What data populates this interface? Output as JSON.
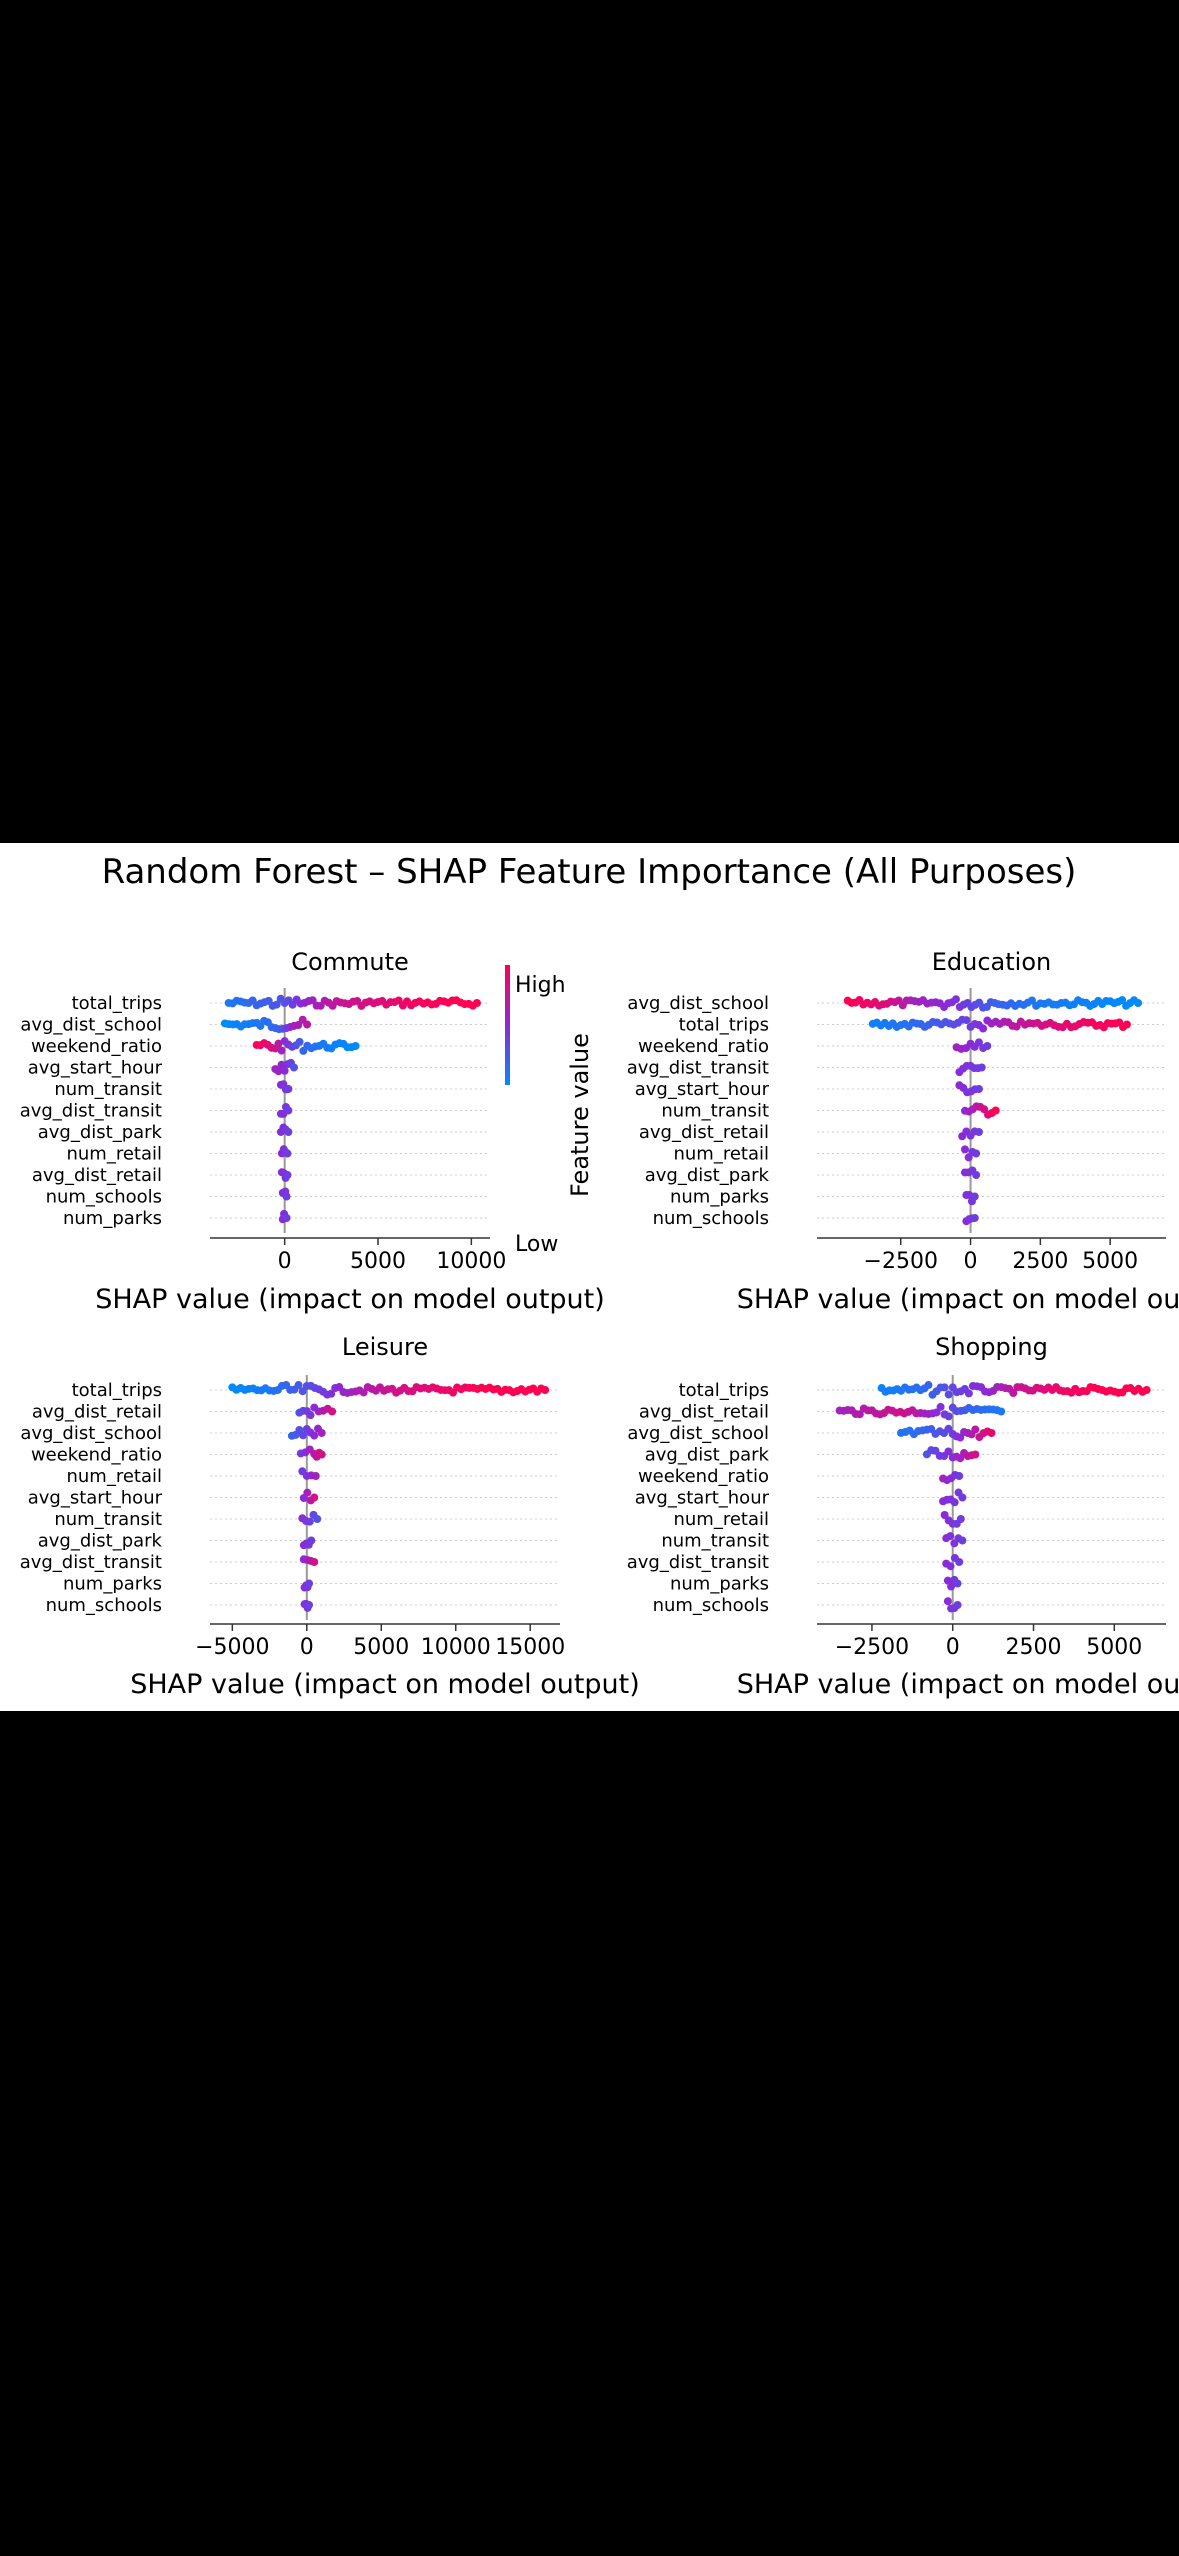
{
  "title": "Random Forest – SHAP Feature Importance (All Purposes)",
  "colorbar": {
    "label": "Feature value",
    "high": "High",
    "low": "Low",
    "color_high": "#ff0052",
    "color_low": "#008bfb"
  },
  "chart_data": [
    {
      "type": "scatter",
      "title": "Commute",
      "xlabel": "SHAP value (impact on model output)",
      "xlim": [
        -4000,
        11000
      ],
      "xticks": [
        0,
        5000,
        10000
      ],
      "xtick_labels": [
        "0",
        "5000",
        "10000"
      ],
      "features": [
        "total_trips",
        "avg_dist_school",
        "weekend_ratio",
        "avg_start_hour",
        "num_transit",
        "avg_dist_transit",
        "avg_dist_park",
        "num_retail",
        "avg_dist_retail",
        "num_schools",
        "num_parks"
      ],
      "spread": [
        [
          {
            "x": -3000,
            "v": 0.1
          },
          {
            "x": -1500,
            "v": 0.2
          },
          {
            "x": 0,
            "v": 0.3
          },
          {
            "x": 1500,
            "v": 0.6
          },
          {
            "x": 3000,
            "v": 0.75
          },
          {
            "x": 5000,
            "v": 0.85
          },
          {
            "x": 7000,
            "v": 0.95
          },
          {
            "x": 9200,
            "v": 1.0
          },
          {
            "x": 10300,
            "v": 1.0
          }
        ],
        [
          {
            "x": -3200,
            "v": 0.0
          },
          {
            "x": -1500,
            "v": 0.1
          },
          {
            "x": -300,
            "v": 0.2
          },
          {
            "x": 500,
            "v": 0.6
          },
          {
            "x": 1200,
            "v": 0.7
          }
        ],
        [
          {
            "x": -1500,
            "v": 1.0
          },
          {
            "x": -500,
            "v": 0.8
          },
          {
            "x": 0,
            "v": 0.5
          },
          {
            "x": 1000,
            "v": 0.2
          },
          {
            "x": 2500,
            "v": 0.05
          },
          {
            "x": 3800,
            "v": 0.0
          }
        ],
        [
          {
            "x": -500,
            "v": 0.6
          },
          {
            "x": 0,
            "v": 0.5
          },
          {
            "x": 500,
            "v": 0.3
          }
        ],
        [
          {
            "x": -200,
            "v": 0.5
          },
          {
            "x": 200,
            "v": 0.4
          }
        ],
        [
          {
            "x": -200,
            "v": 0.5
          },
          {
            "x": 200,
            "v": 0.4
          }
        ],
        [
          {
            "x": -200,
            "v": 0.5
          },
          {
            "x": 200,
            "v": 0.4
          }
        ],
        [
          {
            "x": -150,
            "v": 0.5
          },
          {
            "x": 150,
            "v": 0.4
          }
        ],
        [
          {
            "x": -150,
            "v": 0.5
          },
          {
            "x": 150,
            "v": 0.4
          }
        ],
        [
          {
            "x": -100,
            "v": 0.5
          },
          {
            "x": 100,
            "v": 0.4
          }
        ],
        [
          {
            "x": -100,
            "v": 0.5
          },
          {
            "x": 100,
            "v": 0.4
          }
        ]
      ]
    },
    {
      "type": "scatter",
      "title": "Education",
      "xlabel": "SHAP value (impact on model output)",
      "xlim": [
        -5500,
        7000
      ],
      "xticks": [
        -2500,
        0,
        2500,
        5000
      ],
      "xtick_labels": [
        "−2500",
        "0",
        "2500",
        "5000"
      ],
      "features": [
        "avg_dist_school",
        "total_trips",
        "weekend_ratio",
        "avg_dist_transit",
        "avg_start_hour",
        "num_transit",
        "avg_dist_retail",
        "num_retail",
        "avg_dist_park",
        "num_parks",
        "num_schools"
      ],
      "spread": [
        [
          {
            "x": -4400,
            "v": 1.0
          },
          {
            "x": -3000,
            "v": 0.85
          },
          {
            "x": -2000,
            "v": 0.6
          },
          {
            "x": -800,
            "v": 0.5
          },
          {
            "x": 1000,
            "v": 0.2
          },
          {
            "x": 2500,
            "v": 0.1
          },
          {
            "x": 4000,
            "v": 0.05
          },
          {
            "x": 6000,
            "v": 0.0
          }
        ],
        [
          {
            "x": -3500,
            "v": 0.05
          },
          {
            "x": -1500,
            "v": 0.2
          },
          {
            "x": 0,
            "v": 0.4
          },
          {
            "x": 1500,
            "v": 0.7
          },
          {
            "x": 3000,
            "v": 0.85
          },
          {
            "x": 4500,
            "v": 0.95
          },
          {
            "x": 5600,
            "v": 1.0
          }
        ],
        [
          {
            "x": -500,
            "v": 0.6
          },
          {
            "x": 0,
            "v": 0.5
          },
          {
            "x": 600,
            "v": 0.4
          }
        ],
        [
          {
            "x": -400,
            "v": 0.5
          },
          {
            "x": 400,
            "v": 0.4
          }
        ],
        [
          {
            "x": -400,
            "v": 0.5
          },
          {
            "x": 300,
            "v": 0.4
          }
        ],
        [
          {
            "x": -200,
            "v": 0.5
          },
          {
            "x": 900,
            "v": 1.0
          }
        ],
        [
          {
            "x": -300,
            "v": 0.5
          },
          {
            "x": 300,
            "v": 0.4
          }
        ],
        [
          {
            "x": -200,
            "v": 0.5
          },
          {
            "x": 200,
            "v": 0.4
          }
        ],
        [
          {
            "x": -200,
            "v": 0.5
          },
          {
            "x": 200,
            "v": 0.4
          }
        ],
        [
          {
            "x": -150,
            "v": 0.5
          },
          {
            "x": 150,
            "v": 0.4
          }
        ],
        [
          {
            "x": -150,
            "v": 0.5
          },
          {
            "x": 150,
            "v": 0.4
          }
        ]
      ]
    },
    {
      "type": "scatter",
      "title": "Leisure",
      "xlabel": "SHAP value (impact on model output)",
      "xlim": [
        -6500,
        17000
      ],
      "xticks": [
        -5000,
        0,
        5000,
        10000,
        15000
      ],
      "xtick_labels": [
        "−5000",
        "0",
        "5000",
        "10000",
        "15000"
      ],
      "features": [
        "total_trips",
        "avg_dist_retail",
        "avg_dist_school",
        "weekend_ratio",
        "num_retail",
        "avg_start_hour",
        "num_transit",
        "avg_dist_park",
        "avg_dist_transit",
        "num_parks",
        "num_schools"
      ],
      "spread": [
        [
          {
            "x": -5000,
            "v": 0.0
          },
          {
            "x": -2500,
            "v": 0.1
          },
          {
            "x": 0,
            "v": 0.3
          },
          {
            "x": 3000,
            "v": 0.6
          },
          {
            "x": 6000,
            "v": 0.8
          },
          {
            "x": 9000,
            "v": 0.9
          },
          {
            "x": 12000,
            "v": 1.0
          },
          {
            "x": 16000,
            "v": 1.0
          }
        ],
        [
          {
            "x": -500,
            "v": 0.3
          },
          {
            "x": 500,
            "v": 0.5
          },
          {
            "x": 1700,
            "v": 0.8
          }
        ],
        [
          {
            "x": -1000,
            "v": 0.2
          },
          {
            "x": 0,
            "v": 0.4
          },
          {
            "x": 1000,
            "v": 0.6
          }
        ],
        [
          {
            "x": -400,
            "v": 0.4
          },
          {
            "x": 500,
            "v": 0.7
          },
          {
            "x": 1000,
            "v": 0.8
          }
        ],
        [
          {
            "x": -300,
            "v": 0.4
          },
          {
            "x": 600,
            "v": 0.6
          }
        ],
        [
          {
            "x": -200,
            "v": 0.5
          },
          {
            "x": 500,
            "v": 0.8
          }
        ],
        [
          {
            "x": -300,
            "v": 0.5
          },
          {
            "x": 700,
            "v": 0.3
          }
        ],
        [
          {
            "x": -200,
            "v": 0.5
          },
          {
            "x": 300,
            "v": 0.4
          }
        ],
        [
          {
            "x": -200,
            "v": 0.5
          },
          {
            "x": 500,
            "v": 0.8
          }
        ],
        [
          {
            "x": -150,
            "v": 0.5
          },
          {
            "x": 150,
            "v": 0.4
          }
        ],
        [
          {
            "x": -150,
            "v": 0.5
          },
          {
            "x": 150,
            "v": 0.4
          }
        ]
      ]
    },
    {
      "type": "scatter",
      "title": "Shopping",
      "xlabel": "SHAP value (impact on model output)",
      "xlim": [
        -4200,
        6600
      ],
      "xticks": [
        -2500,
        0,
        2500,
        5000
      ],
      "xtick_labels": [
        "−2500",
        "0",
        "2500",
        "5000"
      ],
      "features": [
        "total_trips",
        "avg_dist_retail",
        "avg_dist_school",
        "avg_dist_park",
        "weekend_ratio",
        "avg_start_hour",
        "num_retail",
        "num_transit",
        "avg_dist_transit",
        "num_parks",
        "num_schools"
      ],
      "spread": [
        [
          {
            "x": -2200,
            "v": 0.05
          },
          {
            "x": -1000,
            "v": 0.15
          },
          {
            "x": 0,
            "v": 0.35
          },
          {
            "x": 1000,
            "v": 0.5
          },
          {
            "x": 2000,
            "v": 0.75
          },
          {
            "x": 3200,
            "v": 0.9
          },
          {
            "x": 4500,
            "v": 1.0
          },
          {
            "x": 6000,
            "v": 1.0
          }
        ],
        [
          {
            "x": -3500,
            "v": 0.6
          },
          {
            "x": -2500,
            "v": 0.7
          },
          {
            "x": -1500,
            "v": 0.8
          },
          {
            "x": -500,
            "v": 0.5
          },
          {
            "x": 500,
            "v": 0.2
          },
          {
            "x": 1500,
            "v": 0.1
          }
        ],
        [
          {
            "x": -1600,
            "v": 0.1
          },
          {
            "x": -800,
            "v": 0.2
          },
          {
            "x": 0,
            "v": 0.4
          },
          {
            "x": 700,
            "v": 0.7
          },
          {
            "x": 1200,
            "v": 0.9
          }
        ],
        [
          {
            "x": -800,
            "v": 0.3
          },
          {
            "x": 0,
            "v": 0.5
          },
          {
            "x": 700,
            "v": 0.8
          }
        ],
        [
          {
            "x": -300,
            "v": 0.6
          },
          {
            "x": 200,
            "v": 0.4
          }
        ],
        [
          {
            "x": -300,
            "v": 0.5
          },
          {
            "x": 300,
            "v": 0.4
          }
        ],
        [
          {
            "x": -250,
            "v": 0.5
          },
          {
            "x": 250,
            "v": 0.4
          }
        ],
        [
          {
            "x": -200,
            "v": 0.5
          },
          {
            "x": 300,
            "v": 0.4
          }
        ],
        [
          {
            "x": -200,
            "v": 0.5
          },
          {
            "x": 200,
            "v": 0.4
          }
        ],
        [
          {
            "x": -150,
            "v": 0.5
          },
          {
            "x": 150,
            "v": 0.4
          }
        ],
        [
          {
            "x": -150,
            "v": 0.5
          },
          {
            "x": 150,
            "v": 0.4
          }
        ]
      ]
    }
  ]
}
